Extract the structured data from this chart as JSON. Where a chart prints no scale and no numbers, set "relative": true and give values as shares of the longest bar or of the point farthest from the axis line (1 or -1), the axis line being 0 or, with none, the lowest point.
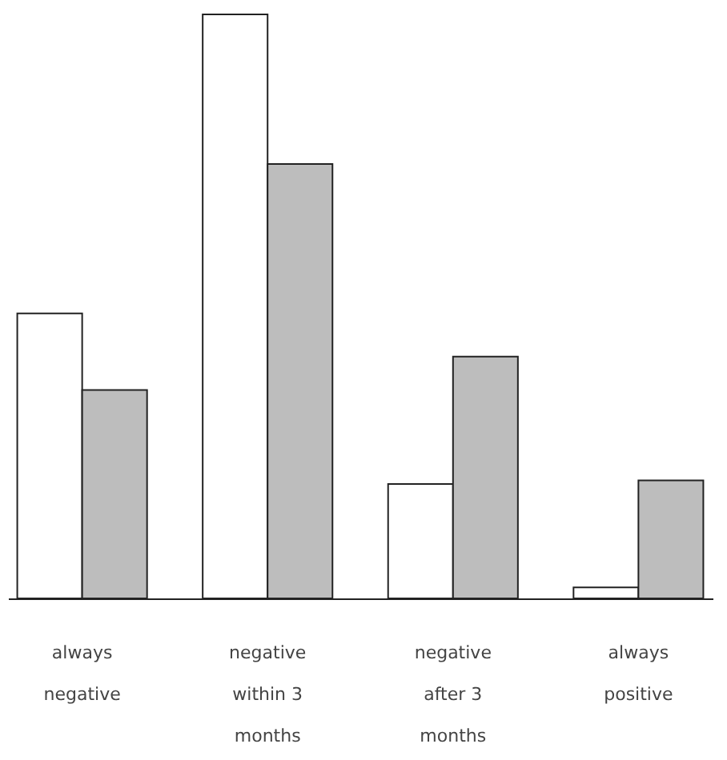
{
  "chart_data": {
    "type": "bar",
    "relative": true,
    "categories": [
      "always negative",
      "negative within 3 months",
      "negative after 3 months",
      "always positive"
    ],
    "series": [
      {
        "color": "#ffffff",
        "values": [
          0.488,
          1,
          0.196,
          0.019
        ]
      },
      {
        "color": "#bdbdbd",
        "values": [
          0.357,
          0.744,
          0.414,
          0.202
        ]
      }
    ],
    "grid": false
  }
}
